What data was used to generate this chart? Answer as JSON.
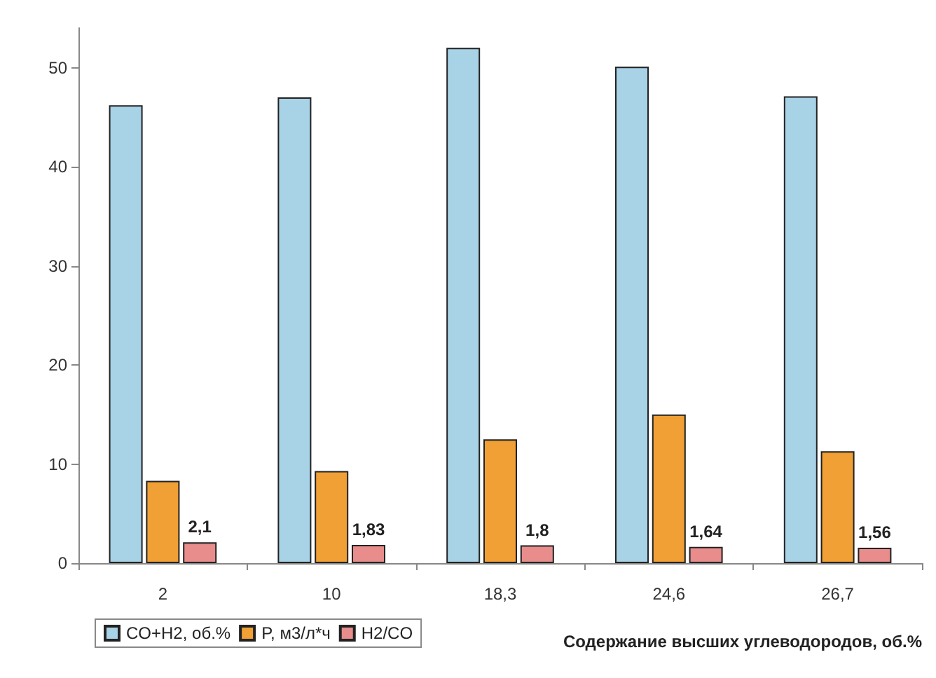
{
  "chart_data": {
    "type": "bar",
    "xlabel": "Содержание высших углеводородов, об.%",
    "categories": [
      "2",
      "10",
      "18,3",
      "24,6",
      "26,7"
    ],
    "series": [
      {
        "name": "CO+H2, об.%",
        "color": "#a8d2e6",
        "values": [
          46.2,
          47.0,
          52.0,
          50.1,
          47.1
        ]
      },
      {
        "name": "P, м3/л*ч",
        "color": "#f0a034",
        "values": [
          8.3,
          9.3,
          12.5,
          15.0,
          11.3
        ]
      },
      {
        "name": "H2/CO",
        "color": "#e88c8c",
        "values": [
          2.1,
          1.83,
          1.8,
          1.64,
          1.56
        ],
        "value_labels": [
          "2,1",
          "1,83",
          "1,8",
          "1,64",
          "1,56"
        ]
      }
    ],
    "ylim": [
      0,
      54
    ],
    "yticks": [
      0,
      10,
      20,
      30,
      40,
      50
    ],
    "grid": false,
    "legend": "bottom left"
  }
}
